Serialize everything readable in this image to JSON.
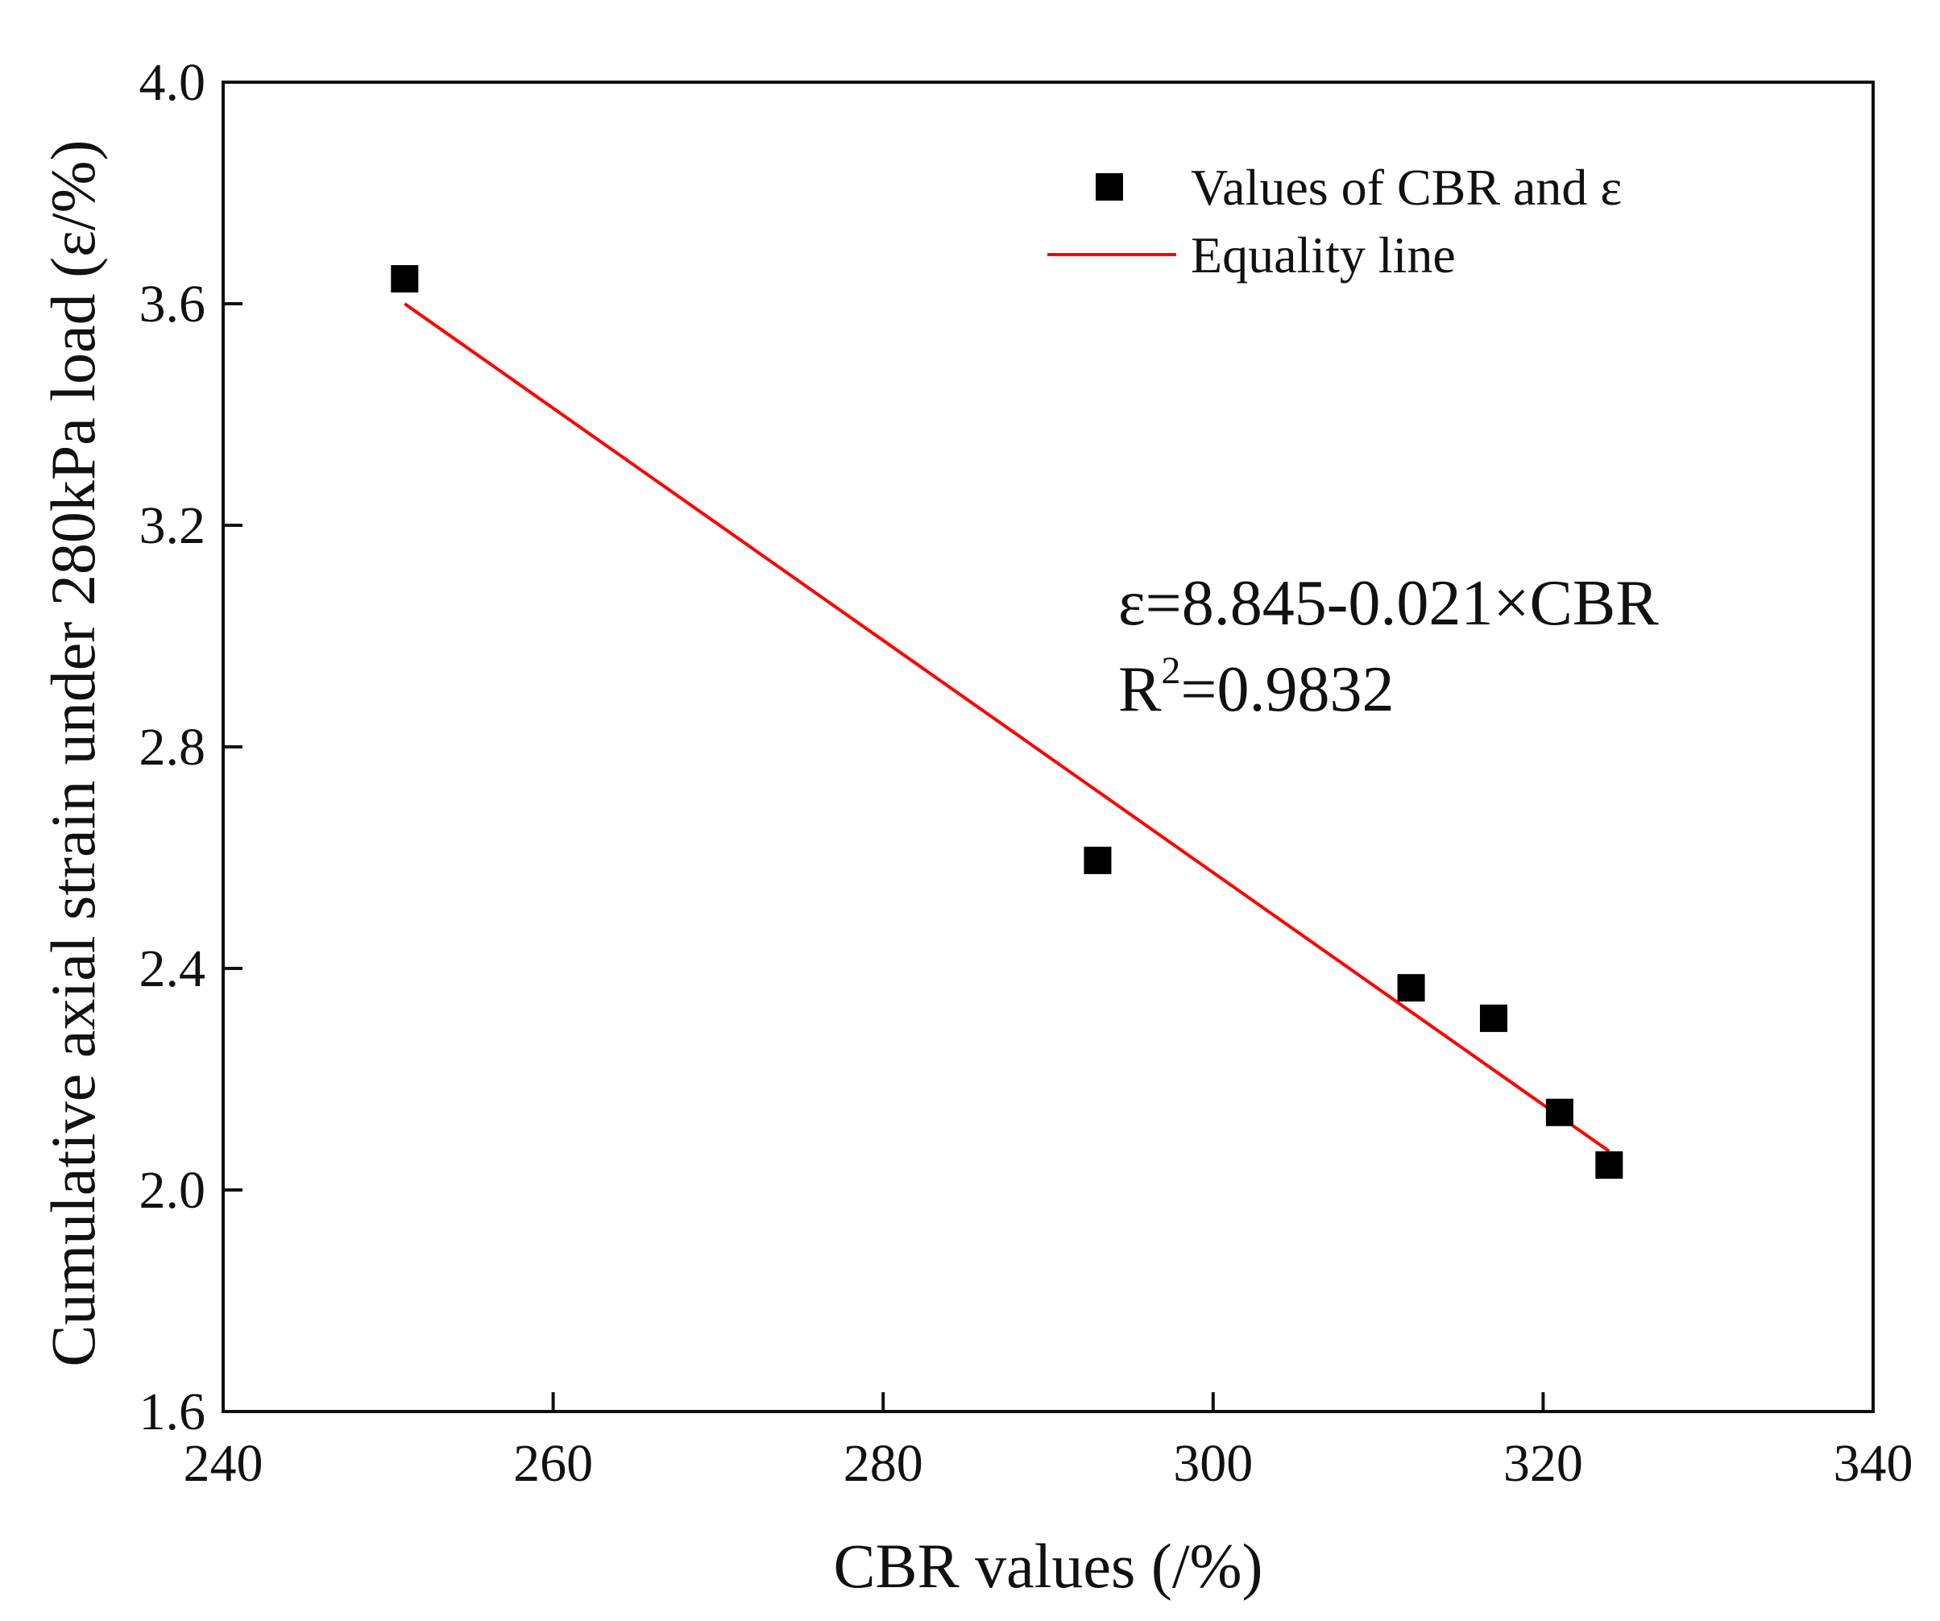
{
  "chart_data": {
    "type": "scatter",
    "title": "",
    "xlabel": "CBR values (/%)",
    "ylabel": "Cumulative axial strain under 280kPa load (ε/%)",
    "xlim": [
      240,
      340
    ],
    "ylim": [
      1.6,
      4.0
    ],
    "x_ticks": [
      "240",
      "260",
      "280",
      "300",
      "320",
      "340"
    ],
    "y_ticks": [
      "1.6",
      "2.0",
      "2.4",
      "2.8",
      "3.2",
      "3.6",
      "4.0"
    ],
    "grid": false,
    "legend_position": "top-right",
    "series": [
      {
        "name": "Values of CBR and ε",
        "kind": "scatter",
        "marker": "square",
        "color": "#000000",
        "x": [
          251,
          293,
          312,
          317,
          321,
          324
        ],
        "y": [
          3.645,
          2.595,
          2.365,
          2.31,
          2.14,
          2.045
        ]
      },
      {
        "name": "Equality line",
        "kind": "line",
        "color": "#ff0000",
        "x": [
          251,
          324
        ],
        "y": [
          3.6,
          2.07
        ]
      }
    ],
    "annotations": {
      "equation": "ε=8.845-0.021×CBR",
      "r2_prefix": "R",
      "r2_superscript": "2",
      "r2_value": "=0.9832"
    }
  }
}
